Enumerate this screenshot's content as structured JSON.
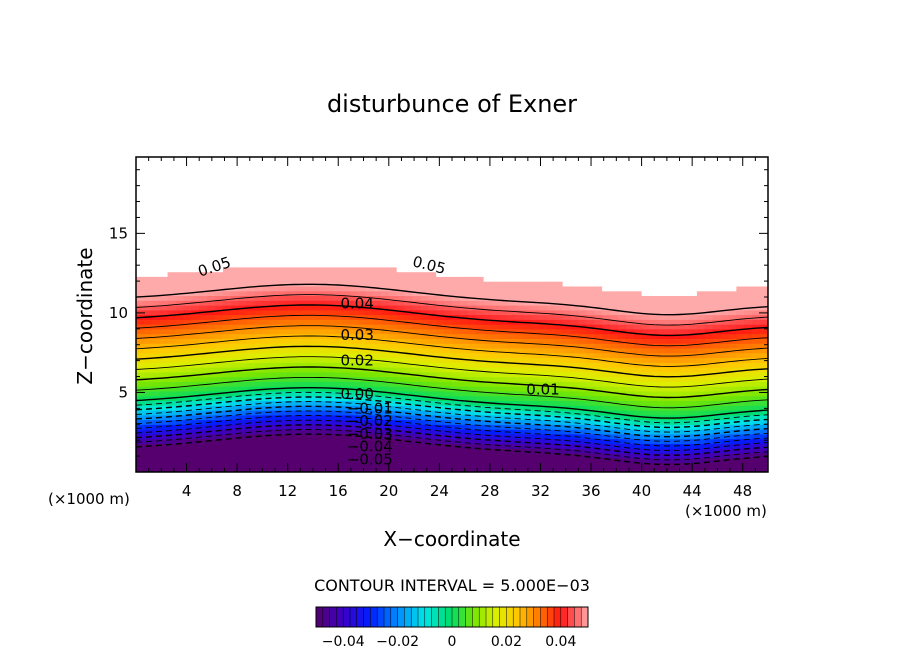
{
  "chart_data": {
    "type": "heatmap",
    "title": "disturbunce of Exner",
    "xlabel": "X−coordinate",
    "ylabel": "Z−coordinate",
    "x_unit_left": "(×1000 m)",
    "x_unit_right": "(×1000 m)",
    "xlim": [
      0,
      50
    ],
    "ylim": [
      0,
      19.8
    ],
    "x_ticks": [
      4,
      8,
      12,
      16,
      20,
      24,
      28,
      32,
      36,
      40,
      44,
      48
    ],
    "y_ticks": [
      5,
      10,
      15
    ],
    "x_tick_labels": [
      "4",
      "8",
      "12",
      "16",
      "20",
      "24",
      "28",
      "32",
      "36",
      "40",
      "44",
      "48"
    ],
    "y_tick_labels": [
      "5",
      "10",
      "15"
    ],
    "contour_interval_text": "CONTOUR INTERVAL = 5.000E−03",
    "contour_interval": 0.005,
    "value_range": [
      -0.05,
      0.06
    ],
    "colorbar": {
      "range": [
        -0.05,
        0.05
      ],
      "ticks": [
        -0.04,
        -0.02,
        0,
        0.02,
        0.04
      ],
      "tick_labels": [
        "−0.04",
        "−0.02",
        "0",
        "0.02",
        "0.04"
      ]
    },
    "contour_labels": [
      {
        "text": "0.05",
        "x": 6.2,
        "z": 12.9,
        "rotate": -18
      },
      {
        "text": "0.05",
        "x": 23.2,
        "z": 13.0,
        "rotate": 14
      },
      {
        "text": "0.04",
        "x": 17.5,
        "z": 10.6,
        "rotate": 0
      },
      {
        "text": "0.03",
        "x": 17.5,
        "z": 8.6,
        "rotate": 0
      },
      {
        "text": "0.02",
        "x": 17.5,
        "z": 7.0,
        "rotate": 0
      },
      {
        "text": "0.01",
        "x": 32.2,
        "z": 5.2,
        "rotate": 0
      },
      {
        "text": "0.00",
        "x": 17.5,
        "z": 4.9,
        "rotate": 0
      },
      {
        "text": "−0.01",
        "x": 18.5,
        "z": 4.0,
        "rotate": 0
      },
      {
        "text": "−0.02",
        "x": 18.5,
        "z": 3.2,
        "rotate": 0
      },
      {
        "text": "−0.03",
        "x": 18.5,
        "z": 2.4,
        "rotate": 0
      },
      {
        "text": "−0.04",
        "x": 18.5,
        "z": 1.6,
        "rotate": 0
      },
      {
        "text": "−0.05",
        "x": 18.5,
        "z": 0.8,
        "rotate": 0
      }
    ]
  }
}
